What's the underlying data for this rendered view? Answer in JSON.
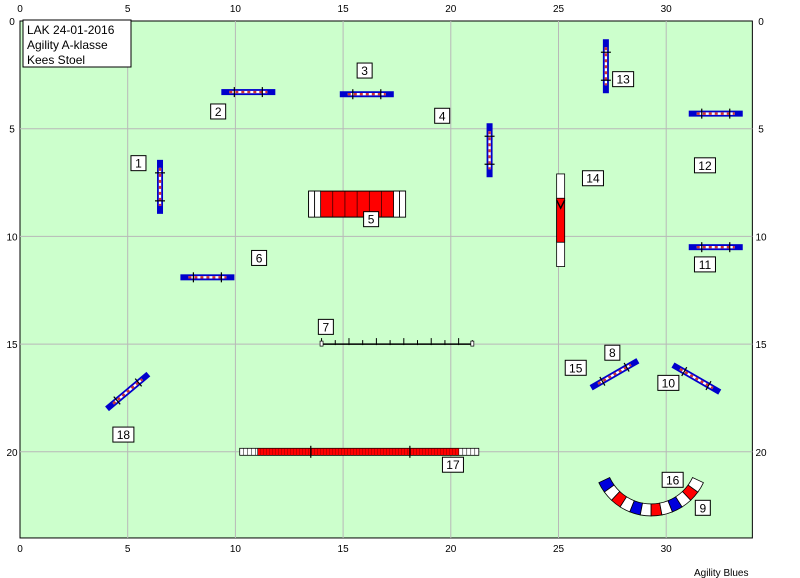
{
  "info": {
    "line1": "LAK 24-01-2016",
    "line2": "Agility A-klasse",
    "line3": "Kees Stoel"
  },
  "credit": "Agility Blues",
  "axes": {
    "x_ticks": [
      "0",
      "5",
      "10",
      "15",
      "20",
      "25",
      "30"
    ],
    "y_ticks": [
      "0",
      "5",
      "10",
      "15",
      "20"
    ],
    "x_range": [
      0,
      34
    ],
    "y_range": [
      0,
      24
    ]
  },
  "colors": {
    "field": "#ccffcc",
    "grid": "#b8b8b8",
    "bar_blue": "#0000cc",
    "tunnel_red": "#ff0000",
    "pole_red": "#cc3333"
  },
  "numbers": [
    {
      "label": "1",
      "x": 5.5,
      "y": 6.6
    },
    {
      "label": "2",
      "x": 9.2,
      "y": 4.2
    },
    {
      "label": "3",
      "x": 16.0,
      "y": 2.3
    },
    {
      "label": "4",
      "x": 19.6,
      "y": 4.4
    },
    {
      "label": "5",
      "x": 16.3,
      "y": 9.2
    },
    {
      "label": "6",
      "x": 11.1,
      "y": 11.0
    },
    {
      "label": "7",
      "x": 14.2,
      "y": 14.2
    },
    {
      "label": "8",
      "x": 27.5,
      "y": 15.4
    },
    {
      "label": "9",
      "x": 31.7,
      "y": 22.6
    },
    {
      "label": "10",
      "x": 30.1,
      "y": 16.8
    },
    {
      "label": "11",
      "x": 31.8,
      "y": 11.3
    },
    {
      "label": "12",
      "x": 31.8,
      "y": 6.7
    },
    {
      "label": "13",
      "x": 28.0,
      "y": 2.7
    },
    {
      "label": "14",
      "x": 26.6,
      "y": 7.3
    },
    {
      "label": "15",
      "x": 25.8,
      "y": 16.1
    },
    {
      "label": "16",
      "x": 30.3,
      "y": 21.3
    },
    {
      "label": "17",
      "x": 20.1,
      "y": 20.6
    },
    {
      "label": "18",
      "x": 4.8,
      "y": 19.2
    }
  ],
  "jumps": [
    {
      "name": "jump-2",
      "x": 10.6,
      "y": 3.3,
      "angle": 0
    },
    {
      "name": "jump-3",
      "x": 16.1,
      "y": 3.4,
      "angle": 0
    },
    {
      "name": "jump-13",
      "x": 27.2,
      "y": 2.1,
      "angle": 90
    },
    {
      "name": "jump-12",
      "x": 32.3,
      "y": 4.3,
      "angle": 0
    },
    {
      "name": "jump-4",
      "x": 21.8,
      "y": 6.0,
      "angle": 90
    },
    {
      "name": "jump-1",
      "x": 6.5,
      "y": 7.7,
      "angle": 90
    },
    {
      "name": "jump-11",
      "x": 32.3,
      "y": 10.5,
      "angle": 0
    },
    {
      "name": "jump-6",
      "x": 8.7,
      "y": 11.9,
      "angle": 0
    },
    {
      "name": "jump-8",
      "x": 27.6,
      "y": 16.4,
      "angle": -30
    },
    {
      "name": "jump-10",
      "x": 31.4,
      "y": 16.6,
      "angle": 30
    },
    {
      "name": "jump-18",
      "x": 5.0,
      "y": 17.2,
      "angle": -40
    }
  ],
  "tunnel_5": {
    "x1": 13.4,
    "x2": 17.9,
    "y": 8.5
  },
  "tunnel_14": {
    "x": 25.1,
    "y1": 7.1,
    "y2": 11.4
  },
  "tunnel_17": {
    "x1": 10.2,
    "x2": 21.3,
    "y": 20.0
  },
  "weave_7": {
    "x1": 14.0,
    "x2": 21.0,
    "y": 15.0,
    "poles": 12
  },
  "curve_9": {
    "cx": 29.3,
    "cy": 20.3,
    "r": 2.4,
    "a_start": 155,
    "a_end": 25,
    "segments": 12
  }
}
